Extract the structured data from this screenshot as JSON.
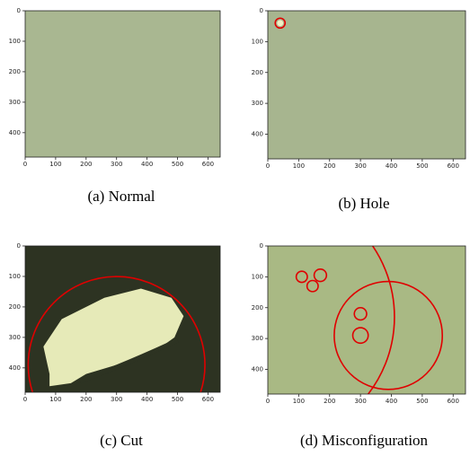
{
  "chart_data": [
    {
      "type": "image",
      "caption": "(a) Normal",
      "xlim": [
        0,
        640
      ],
      "ylim": [
        480,
        0
      ],
      "xticks": [
        0,
        100,
        200,
        300,
        400,
        500,
        600
      ],
      "yticks": [
        0,
        100,
        200,
        300,
        400
      ]
    },
    {
      "type": "image",
      "caption": "(b) Hole",
      "xlim": [
        0,
        640
      ],
      "ylim": [
        480,
        0
      ],
      "xticks": [
        0,
        100,
        200,
        300,
        400,
        500,
        600
      ],
      "yticks": [
        0,
        100,
        200,
        300,
        400
      ]
    },
    {
      "type": "image",
      "caption": "(c) Cut",
      "xlim": [
        0,
        640
      ],
      "ylim": [
        480,
        0
      ],
      "xticks": [
        0,
        100,
        200,
        300,
        400,
        500,
        600
      ],
      "yticks": [
        0,
        100,
        200,
        300,
        400
      ]
    },
    {
      "type": "image",
      "caption": "(d) Misconfiguration",
      "xlim": [
        0,
        640
      ],
      "ylim": [
        480,
        0
      ],
      "xticks": [
        0,
        100,
        200,
        300,
        400,
        500,
        600
      ],
      "yticks": [
        0,
        100,
        200,
        300,
        400
      ]
    }
  ]
}
